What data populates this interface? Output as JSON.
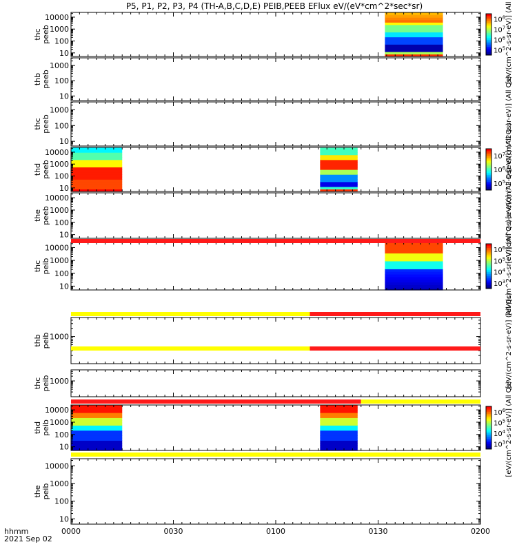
{
  "chart_data": {
    "type": "heatmap",
    "title": "P5, P1, P2, P3, P4 (TH-A,B,C,D,E) PEIB,PEEB EFlux eV/(eV*cm^2*sec*sr)",
    "x_axis": {
      "range_minutes": [
        0,
        120
      ],
      "ticks": [
        {
          "minute": 0,
          "label": "0000"
        },
        {
          "minute": 30,
          "label": "0030"
        },
        {
          "minute": 60,
          "label": "0100"
        },
        {
          "minute": 90,
          "label": "0130"
        },
        {
          "minute": 120,
          "label": "0200"
        }
      ],
      "row_label_1": "hhmm",
      "row_label_2": "2021 Sep 02"
    },
    "panels": [
      {
        "label1": "thc",
        "label2": "peeb",
        "yticks": [
          "10",
          "100",
          "1000",
          "10000"
        ],
        "ylog": [
          0.7,
          4.4
        ],
        "blocks": [
          {
            "t0": 92,
            "t1": 109,
            "scheme": "electron_full"
          }
        ],
        "colorbar": {
          "ticks": [
            "10^5",
            "10^6",
            "10^7",
            "10^8"
          ],
          "label": "[eV/(cm^2-s-sr-eV)] (All Qs)"
        }
      },
      {
        "label1": "thb",
        "label2": "peeb",
        "yticks": [
          "10",
          "100",
          "1000"
        ],
        "ylog": [
          0.7,
          3.5
        ],
        "blocks": []
      },
      {
        "label1": "thc",
        "label2": "peeb",
        "yticks": [
          "10",
          "100",
          "1000"
        ],
        "ylog": [
          0.7,
          3.5
        ],
        "blocks": [],
        "colorbar": {
          "label": "[eV/(cm^2-s-sr-eV)] (All Qs)"
        }
      },
      {
        "label1": "thd",
        "label2": "peeb",
        "yticks": [
          "10",
          "100",
          "1000",
          "10000"
        ],
        "ylog": [
          0.7,
          4.4
        ],
        "blocks": [
          {
            "t0": 0,
            "t1": 15,
            "scheme": "electron_low"
          },
          {
            "t0": 73,
            "t1": 84,
            "scheme": "electron_mid"
          }
        ],
        "colorbar": {
          "ticks": [
            "10^5",
            "10^6",
            "10^7"
          ],
          "label": "[eV/(cm^2-s-sr-eV)] (All Qs)"
        }
      },
      {
        "label1": "the",
        "label2": "peeb",
        "yticks": [
          "10",
          "100",
          "1000",
          "10000"
        ],
        "ylog": [
          0.7,
          4.4
        ],
        "blocks": [],
        "colorbar": {
          "label": "[eV/(cm^2-s-sr-eV)] (All Qs)"
        }
      },
      {
        "label1": "thc",
        "label2": "peib",
        "yticks": [
          "10",
          "100",
          "1000",
          "10000"
        ],
        "ylog": [
          0.7,
          4.4
        ],
        "blocks": [
          {
            "t0": 92,
            "t1": 109,
            "scheme": "ion_c"
          }
        ],
        "colorbar": {
          "ticks": [
            "10^3",
            "10^4",
            "10^5",
            "10^6"
          ],
          "label": "[eV/(cm^2-s-sr-eV)] (All Qs)"
        }
      },
      {
        "label1": "thb",
        "label2": "peib",
        "yticks": [
          "1000"
        ],
        "ylog": [
          2.0,
          3.7
        ],
        "blocks": [],
        "colorbar": {
          "label": "[eV/(cm^2-s-sr-eV)] (All Qs)"
        }
      },
      {
        "label1": "thc",
        "label2": "peib",
        "yticks": [
          "1000"
        ],
        "ylog": [
          2.0,
          3.7
        ],
        "blocks": []
      },
      {
        "label1": "thd",
        "label2": "peib",
        "yticks": [
          "10",
          "100",
          "1000",
          "10000"
        ],
        "ylog": [
          0.7,
          4.4
        ],
        "blocks": [
          {
            "t0": 0,
            "t1": 15,
            "scheme": "ion_d"
          },
          {
            "t0": 73,
            "t1": 84,
            "scheme": "ion_d"
          }
        ],
        "colorbar": {
          "ticks": [
            "10^3",
            "10^4",
            "10^5",
            "10^6"
          ],
          "label": "[eV/(cm^2-s-sr-eV)] (All Qs)"
        }
      },
      {
        "label1": "the",
        "label2": "peib",
        "yticks": [
          "10",
          "100",
          "1000",
          "10000"
        ],
        "ylog": [
          0.7,
          4.4
        ],
        "blocks": []
      }
    ],
    "status_bars": [
      {
        "after_panel": 4,
        "segments": [
          {
            "t0": 0,
            "t1": 120,
            "color": "#ff1a1a"
          }
        ]
      },
      {
        "after_panel": 5,
        "segments": [
          {
            "t0": 0,
            "t1": 70,
            "color": "#ffff00"
          },
          {
            "t0": 70,
            "t1": 120,
            "color": "#ff1a1a"
          }
        ]
      },
      {
        "after_panel": 6,
        "segments": [
          {
            "t0": 0,
            "t1": 70,
            "color": "#ffff00"
          },
          {
            "t0": 70,
            "t1": 120,
            "color": "#ff1a1a"
          }
        ]
      },
      {
        "after_panel": 7,
        "segments": [
          {
            "t0": 0,
            "t1": 85,
            "color": "#ff1a1a"
          },
          {
            "t0": 85,
            "t1": 120,
            "color": "#ffff00"
          }
        ]
      },
      {
        "after_panel": 8,
        "segments": [
          {
            "t0": 0,
            "t1": 120,
            "color": "#ffff00"
          }
        ]
      }
    ]
  }
}
